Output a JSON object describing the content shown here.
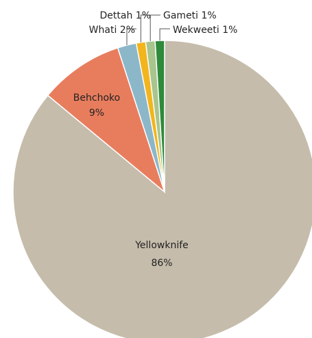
{
  "chart_data": {
    "type": "pie",
    "slices": [
      {
        "label": "Yellowknife",
        "value": 86,
        "display": "86%",
        "color": "#c5bcab"
      },
      {
        "label": "Behchoko",
        "value": 9,
        "display": "9%",
        "color": "#e87d5e"
      },
      {
        "label": "Whati",
        "value": 2,
        "display": "2%",
        "color": "#8cb7c9"
      },
      {
        "label": "Dettah",
        "value": 1,
        "display": "1%",
        "color": "#f2b51d"
      },
      {
        "label": "Gameti",
        "value": 1,
        "display": "1%",
        "color": "#a8c58e"
      },
      {
        "label": "Wekweeti",
        "value": 1,
        "display": "1%",
        "color": "#2f8a3c"
      }
    ],
    "start": "12 o'clock",
    "direction": "clockwise"
  }
}
